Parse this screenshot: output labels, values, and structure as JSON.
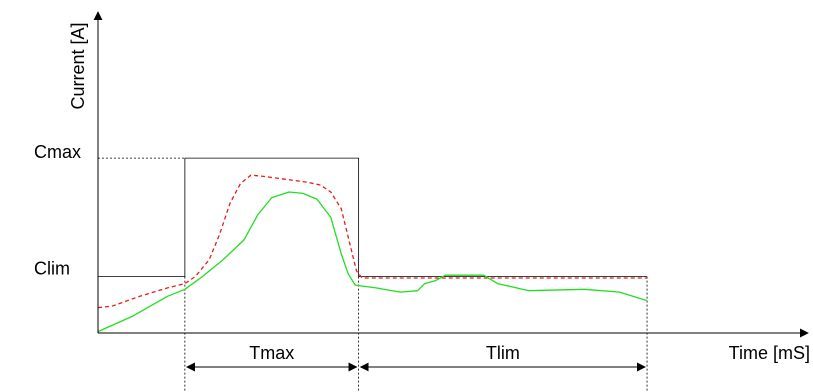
{
  "chart_data": {
    "type": "line",
    "title": "",
    "xlabel": "Time [mS]",
    "ylabel": "Current [A]",
    "grid": false,
    "legend": "none",
    "level_labels": {
      "high": "Cmax",
      "low": "Clim"
    },
    "interval_labels": {
      "first": "Tmax",
      "second": "Tlim"
    },
    "xlim": [
      0,
      10
    ],
    "ylim": [
      0,
      11
    ],
    "markers": {
      "t_start": 1.25,
      "t_mid": 3.75,
      "t_end": 7.9,
      "c_lim": 2.0,
      "c_max": 6.2
    },
    "limit_envelope": [
      [
        0,
        2.0
      ],
      [
        1.25,
        2.0
      ],
      [
        1.25,
        6.2
      ],
      [
        3.75,
        6.2
      ],
      [
        3.75,
        2.0
      ],
      [
        7.9,
        2.0
      ]
    ],
    "series": [
      {
        "style": "dashed",
        "color": "#e0201c",
        "points": [
          [
            0,
            0.9
          ],
          [
            0.2,
            0.95
          ],
          [
            0.6,
            1.3
          ],
          [
            1.0,
            1.6
          ],
          [
            1.25,
            1.75
          ],
          [
            1.4,
            2.0
          ],
          [
            1.6,
            2.6
          ],
          [
            1.75,
            3.5
          ],
          [
            1.9,
            4.6
          ],
          [
            2.05,
            5.3
          ],
          [
            2.2,
            5.6
          ],
          [
            2.4,
            5.55
          ],
          [
            2.7,
            5.45
          ],
          [
            3.0,
            5.35
          ],
          [
            3.2,
            5.25
          ],
          [
            3.35,
            5.0
          ],
          [
            3.5,
            4.4
          ],
          [
            3.62,
            3.2
          ],
          [
            3.72,
            2.2
          ],
          [
            3.8,
            1.95
          ],
          [
            4.5,
            1.95
          ],
          [
            6.0,
            1.95
          ],
          [
            7.9,
            1.95
          ]
        ]
      },
      {
        "style": "solid",
        "color": "#22dd22",
        "points": [
          [
            0,
            0.05
          ],
          [
            0.5,
            0.6
          ],
          [
            1.0,
            1.3
          ],
          [
            1.25,
            1.55
          ],
          [
            1.5,
            2.0
          ],
          [
            1.8,
            2.6
          ],
          [
            2.1,
            3.3
          ],
          [
            2.3,
            4.2
          ],
          [
            2.5,
            4.8
          ],
          [
            2.75,
            5.0
          ],
          [
            2.95,
            4.95
          ],
          [
            3.15,
            4.75
          ],
          [
            3.35,
            4.1
          ],
          [
            3.5,
            2.8
          ],
          [
            3.6,
            2.1
          ],
          [
            3.7,
            1.7
          ],
          [
            4.0,
            1.6
          ],
          [
            4.35,
            1.45
          ],
          [
            4.6,
            1.5
          ],
          [
            4.7,
            1.75
          ],
          [
            4.85,
            1.85
          ],
          [
            5.0,
            2.05
          ],
          [
            5.4,
            2.05
          ],
          [
            5.55,
            2.05
          ],
          [
            5.75,
            1.75
          ],
          [
            6.2,
            1.5
          ],
          [
            7.0,
            1.55
          ],
          [
            7.5,
            1.45
          ],
          [
            7.9,
            1.15
          ]
        ]
      }
    ]
  }
}
